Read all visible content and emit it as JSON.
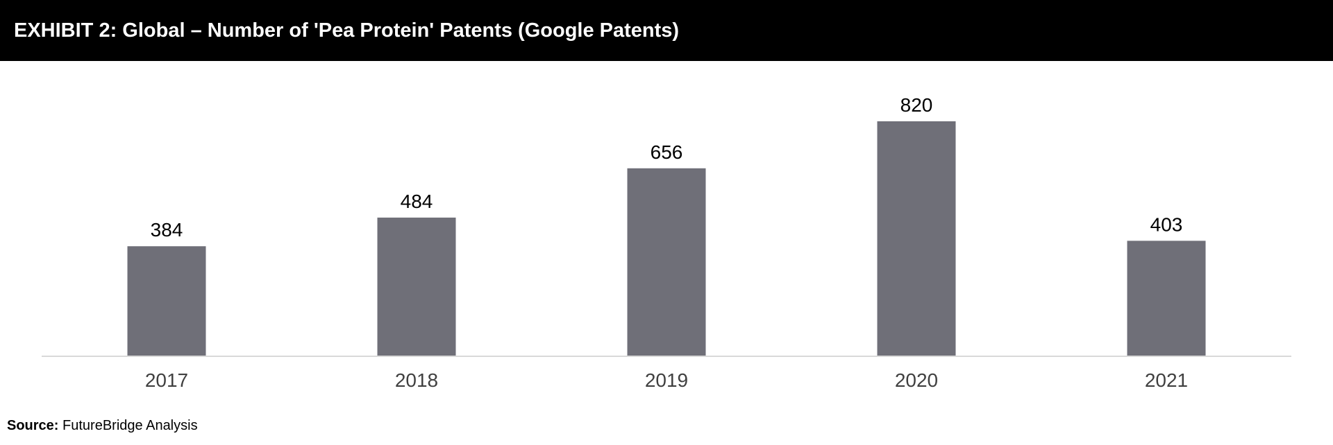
{
  "header": {
    "title": "EXHIBIT 2: Global – Number of 'Pea Protein' Patents (Google Patents)"
  },
  "footer": {
    "source_label": "Source:",
    "source_text": "FutureBridge Analysis"
  },
  "colors": {
    "bar": "#6f6f78",
    "axis": "#d9d9d9",
    "title_bg": "#000000",
    "title_fg": "#ffffff"
  },
  "chart_data": {
    "type": "bar",
    "categories": [
      "2017",
      "2018",
      "2019",
      "2020",
      "2021"
    ],
    "values": [
      384,
      484,
      656,
      820,
      403
    ],
    "title": "EXHIBIT 2: Global – Number of 'Pea Protein' Patents (Google Patents)",
    "xlabel": "",
    "ylabel": "",
    "ylim": [
      0,
      820
    ],
    "grid": false,
    "legend": "none",
    "data_labels": true
  }
}
